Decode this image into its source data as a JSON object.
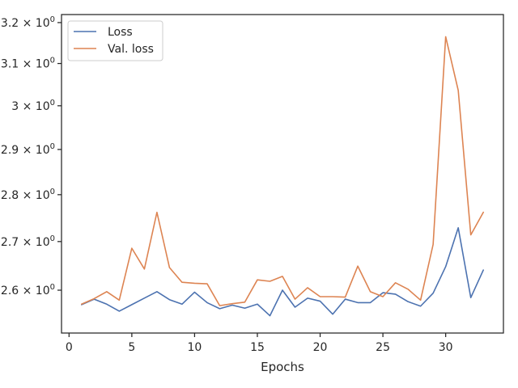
{
  "chart_data": {
    "type": "line",
    "xlabel": "Epochs",
    "ylabel": "",
    "xlim": [
      -0.6,
      34.6
    ],
    "ylim": [
      2.515,
      3.22
    ],
    "yscale": "log",
    "grid": false,
    "legend_position": "top-left",
    "x_ticks": [
      0,
      5,
      10,
      15,
      20,
      25,
      30
    ],
    "x_tick_labels": [
      "0",
      "5",
      "10",
      "15",
      "20",
      "25",
      "30"
    ],
    "y_ticks": [
      {
        "value": 2.6,
        "mantissa": "2.6",
        "base": "10",
        "exp": "0"
      },
      {
        "value": 2.7,
        "mantissa": "2.7",
        "base": "10",
        "exp": "0"
      },
      {
        "value": 2.8,
        "mantissa": "2.8",
        "base": "10",
        "exp": "0"
      },
      {
        "value": 2.9,
        "mantissa": "2.9",
        "base": "10",
        "exp": "0"
      },
      {
        "value": 3.0,
        "mantissa": "3",
        "base": "10",
        "exp": "0"
      },
      {
        "value": 3.1,
        "mantissa": "3.1",
        "base": "10",
        "exp": "0"
      },
      {
        "value": 3.2,
        "mantissa": "3.2",
        "base": "10",
        "exp": "0"
      }
    ],
    "x": [
      1,
      2,
      3,
      4,
      5,
      6,
      7,
      8,
      9,
      10,
      11,
      12,
      13,
      14,
      15,
      16,
      17,
      18,
      19,
      20,
      21,
      22,
      23,
      24,
      25,
      26,
      27,
      28,
      29,
      30,
      31,
      32,
      33
    ],
    "series": [
      {
        "name": "Loss",
        "color": "#4c72b0",
        "values": [
          2.571,
          2.582,
          2.572,
          2.558,
          2.571,
          2.584,
          2.597,
          2.581,
          2.572,
          2.596,
          2.575,
          2.563,
          2.57,
          2.564,
          2.572,
          2.549,
          2.6,
          2.566,
          2.584,
          2.578,
          2.552,
          2.582,
          2.575,
          2.575,
          2.595,
          2.592,
          2.577,
          2.568,
          2.594,
          2.648,
          2.729,
          2.585,
          2.641
        ]
      },
      {
        "name": "Val. loss",
        "color": "#dd8452",
        "values": [
          2.572,
          2.583,
          2.597,
          2.58,
          2.686,
          2.643,
          2.762,
          2.646,
          2.616,
          2.614,
          2.613,
          2.569,
          2.573,
          2.576,
          2.621,
          2.618,
          2.628,
          2.582,
          2.605,
          2.587,
          2.587,
          2.586,
          2.649,
          2.597,
          2.587,
          2.615,
          2.602,
          2.58,
          2.694,
          3.165,
          3.036,
          2.714,
          2.762
        ]
      }
    ]
  }
}
